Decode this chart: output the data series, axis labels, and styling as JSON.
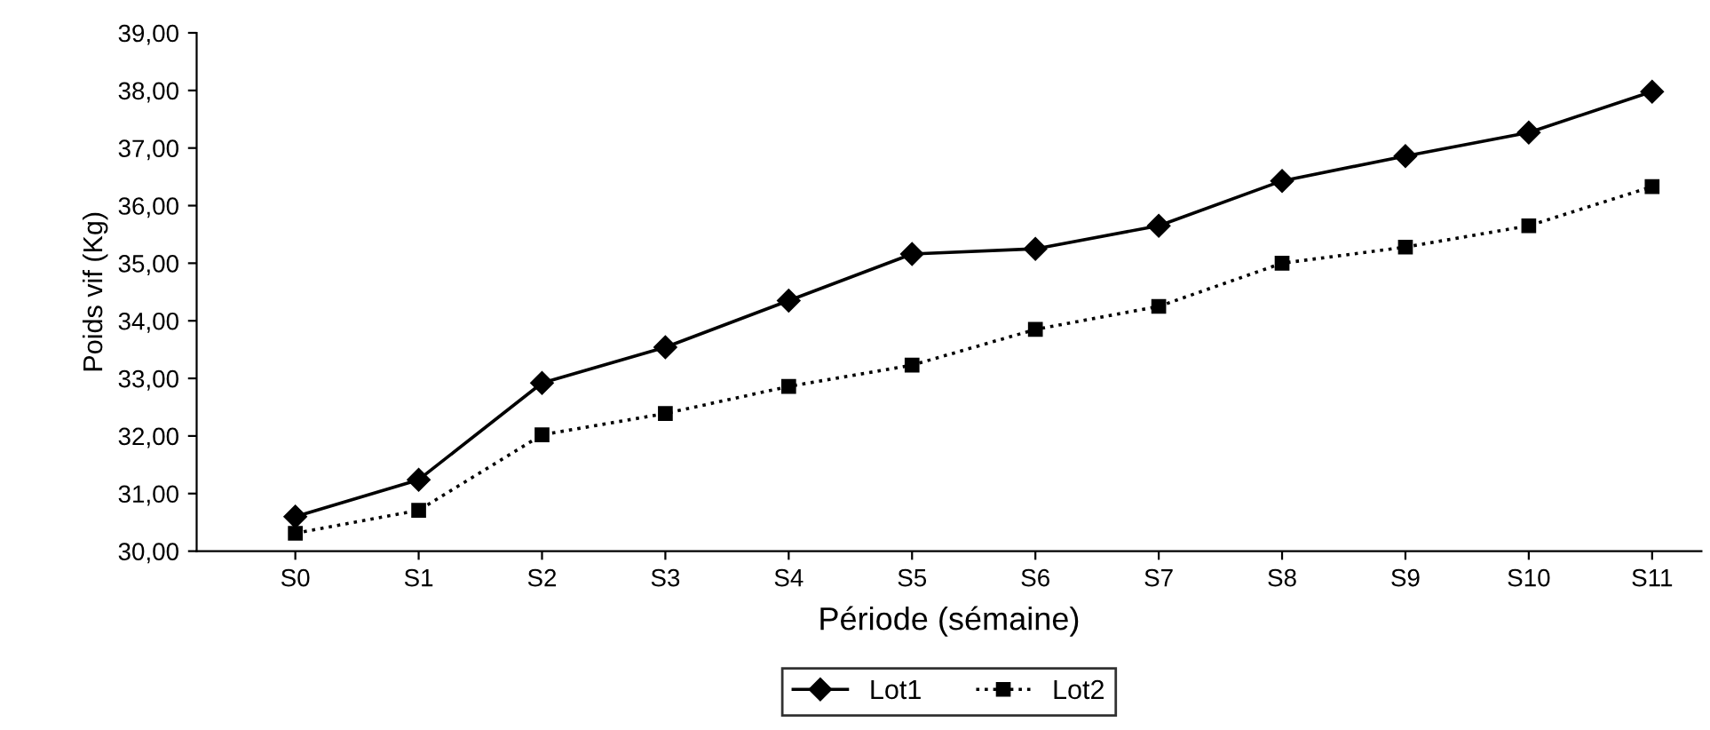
{
  "chart_data": {
    "type": "line",
    "xlabel": "Période (sémaine)",
    "ylabel": "Poids vif (Kg)",
    "categories": [
      "S0",
      "S1",
      "S2",
      "S3",
      "S4",
      "S5",
      "S6",
      "S7",
      "S8",
      "S9",
      "S10",
      "S11"
    ],
    "series": [
      {
        "name": "Lot1",
        "color": "#000000",
        "marker": "diamond",
        "line_style": "solid",
        "values": [
          30.6,
          31.24,
          32.92,
          33.54,
          34.35,
          35.16,
          35.25,
          35.65,
          36.43,
          36.86,
          37.27,
          37.98
        ]
      },
      {
        "name": "Lot2",
        "color": "#000000",
        "marker": "square",
        "line_style": "dotted",
        "values": [
          30.31,
          30.71,
          32.02,
          32.39,
          32.86,
          33.23,
          33.85,
          34.25,
          35.0,
          35.28,
          35.65,
          36.33
        ]
      }
    ],
    "ylim": [
      30,
      39
    ],
    "yticks": [
      {
        "value": 30,
        "label": "30,00"
      },
      {
        "value": 31,
        "label": "31,00"
      },
      {
        "value": 32,
        "label": "32,00"
      },
      {
        "value": 33,
        "label": "33,00"
      },
      {
        "value": 34,
        "label": "34,00"
      },
      {
        "value": 35,
        "label": "35,00"
      },
      {
        "value": 36,
        "label": "36,00"
      },
      {
        "value": 37,
        "label": "37,00"
      },
      {
        "value": 38,
        "label": "38,00"
      },
      {
        "value": 39,
        "label": "39,00"
      }
    ],
    "grid": false,
    "legend": "bottom"
  }
}
